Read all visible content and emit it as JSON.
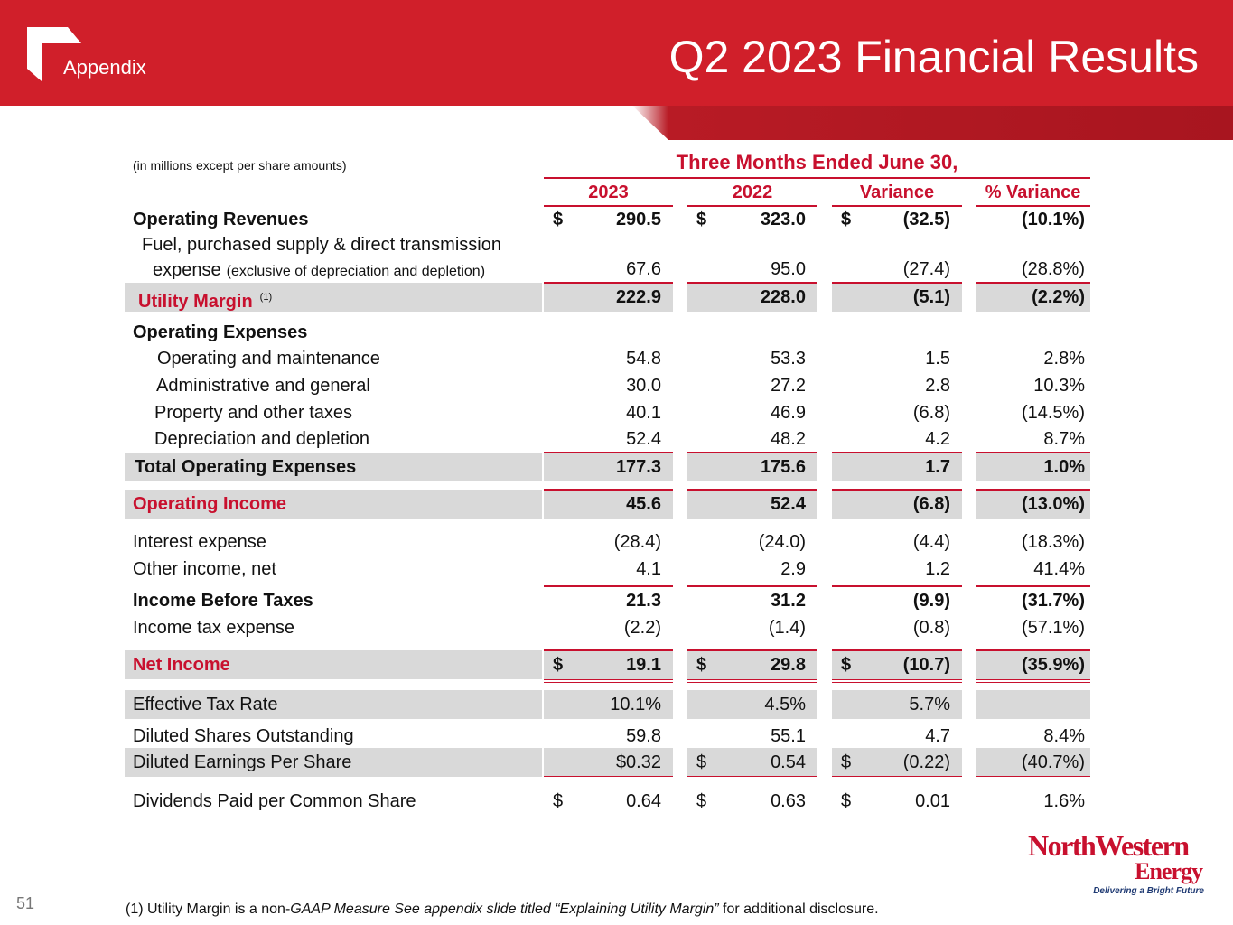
{
  "header": {
    "section": "Appendix",
    "title": "Q2 2023 Financial Results"
  },
  "table": {
    "units": "(in millions except per share amounts)",
    "period": "Three Months Ended June 30,",
    "columns": [
      "2023",
      "2022",
      "Variance",
      "% Variance"
    ],
    "rows": [
      {
        "label": "Operating Revenues",
        "cells": [
          {
            "currency": "$",
            "value": "290.5"
          },
          {
            "currency": "$",
            "value": "323.0"
          },
          {
            "currency": "$",
            "value": "(32.5)"
          },
          "(10.1%)"
        ]
      },
      {
        "label": "Fuel, purchased supply & direct transmission",
        "label2": "expense",
        "label2_note": "(exclusive of depreciation and depletion)",
        "cells": [
          "67.6",
          "95.0",
          "(27.4)",
          "(28.8%)"
        ]
      },
      {
        "label": "Utility Margin",
        "note": "(1)",
        "cells": [
          "222.9",
          "228.0",
          "(5.1)",
          "(2.2%)"
        ]
      },
      {
        "label": "Operating Expenses",
        "cells": []
      },
      {
        "label": "Operating and maintenance",
        "cells": [
          "54.8",
          "53.3",
          "1.5",
          "2.8%"
        ]
      },
      {
        "label": "Administrative and general",
        "cells": [
          "30.0",
          "27.2",
          "2.8",
          "10.3%"
        ]
      },
      {
        "label": "Property and other taxes",
        "cells": [
          "40.1",
          "46.9",
          "(6.8)",
          "(14.5%)"
        ]
      },
      {
        "label": "Depreciation and depletion",
        "cells": [
          "52.4",
          "48.2",
          "4.2",
          "8.7%"
        ]
      },
      {
        "label": "Total Operating Expenses",
        "cells": [
          "177.3",
          "175.6",
          "1.7",
          "1.0%"
        ]
      },
      {
        "label": "Operating Income",
        "cells": [
          "45.6",
          "52.4",
          "(6.8)",
          "(13.0%)"
        ]
      },
      {
        "label": "Interest expense",
        "cells": [
          "(28.4)",
          "(24.0)",
          "(4.4)",
          "(18.3%)"
        ]
      },
      {
        "label": "Other income, net",
        "cells": [
          "4.1",
          "2.9",
          "1.2",
          "41.4%"
        ]
      },
      {
        "label": "Income Before Taxes",
        "cells": [
          "21.3",
          "31.2",
          "(9.9)",
          "(31.7%)"
        ]
      },
      {
        "label": "Income tax expense",
        "cells": [
          "(2.2)",
          "(1.4)",
          "(0.8)",
          "(57.1%)"
        ]
      },
      {
        "label": "Net Income",
        "cells": [
          {
            "currency": "$",
            "value": "19.1"
          },
          {
            "currency": "$",
            "value": "29.8"
          },
          {
            "currency": "$",
            "value": "(10.7)"
          },
          "(35.9%)"
        ]
      },
      {
        "label": "Effective Tax Rate",
        "cells": [
          "10.1%",
          "4.5%",
          "5.7%",
          null
        ]
      },
      {
        "label": "Diluted Shares Outstanding",
        "cells": [
          "59.8",
          "55.1",
          "4.7",
          "8.4%"
        ]
      },
      {
        "label": "Diluted Earnings Per Share",
        "cells": [
          "$0.32",
          {
            "currency": "$",
            "value": "0.54"
          },
          {
            "currency": "$",
            "value": "(0.22)"
          },
          "(40.7%)"
        ]
      },
      {
        "label": "Dividends Paid per Common Share",
        "cells": [
          {
            "currency": "$",
            "value": "0.64"
          },
          {
            "currency": "$",
            "value": "0.63"
          },
          {
            "currency": "$",
            "value": "0.01"
          },
          "1.6%"
        ]
      }
    ]
  },
  "logo": {
    "name": "NorthWestern",
    "name2": "Energy",
    "tagline": "Delivering a Bright Future"
  },
  "footnote": {
    "prefix": "(1) Utility Margin is a non-",
    "italic": "GAAP Measure  See appendix slide titled “Explaining Utility Margin”",
    "suffix": " for additional disclosure."
  },
  "page_number": "51"
}
